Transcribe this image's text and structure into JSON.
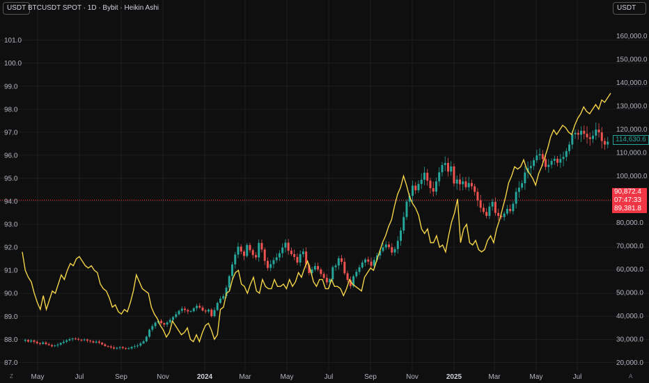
{
  "header": {
    "left_currency": "USDT",
    "symbol_title": "BTCUSDT SPOT · 1D · Bybit · Heikin Ashi",
    "right_currency": "USDT"
  },
  "corner_labels": {
    "bottom_left": "Z",
    "bottom_right": "A"
  },
  "colors": {
    "background": "#0f0f10",
    "up_candle": "#26a69a",
    "down_candle": "#ef5350",
    "line_series": "#f5d547",
    "price_tag_current": "#26a69a",
    "price_tag_red": "#f23645"
  },
  "price_tags": {
    "current": "114,630.6",
    "high": "90,872.4",
    "countdown": "07:47:33",
    "low": "89,381.8"
  },
  "chart_data": {
    "type": "candlestick",
    "title": "BTCUSDT SPOT · 1D · Bybit · Heikin Ashi",
    "x_ticks": [
      "May",
      "Jul",
      "Sep",
      "Nov",
      "2024",
      "Mar",
      "May",
      "Jul",
      "Sep",
      "Nov",
      "2025",
      "Mar",
      "May",
      "Jul"
    ],
    "x_ticks_bold": [
      "2024",
      "2025"
    ],
    "left_axis": {
      "ticks": [
        "87.0",
        "88.0",
        "89.0",
        "90.0",
        "91.0",
        "92.0",
        "93.0",
        "94.0",
        "95.0",
        "96.0",
        "97.0",
        "98.0",
        "99.0",
        "100.0",
        "101.0"
      ],
      "range": [
        86.8,
        102.2
      ]
    },
    "right_axis": {
      "ticks": [
        "20,000.0",
        "30,000.0",
        "40,000.0",
        "50,000.0",
        "60,000.0",
        "70,000.0",
        "80,000.0",
        "90,000.0",
        "100,000.0",
        "110,000.0",
        "120,000.0",
        "130,000.0",
        "140,000.0",
        "150,000.0",
        "160,000.0"
      ],
      "range": [
        18000,
        170000
      ]
    },
    "horizontal_line": {
      "value_left": 94.05
    },
    "series": [
      {
        "kind": "candles",
        "axis": "right",
        "closes": [
          29200,
          29600,
          28900,
          29400,
          28800,
          28200,
          27900,
          28500,
          27800,
          27400,
          26900,
          27200,
          27600,
          28300,
          28800,
          29400,
          29900,
          30200,
          30000,
          29700,
          29500,
          29800,
          29300,
          29000,
          28500,
          28900,
          28400,
          27700,
          27000,
          26800,
          26400,
          25900,
          26200,
          26500,
          26100,
          25800,
          26000,
          26600,
          26900,
          27200,
          28100,
          29000,
          31000,
          34000,
          35500,
          37000,
          37800,
          36800,
          36200,
          37100,
          38200,
          39400,
          40600,
          42100,
          43000,
          42400,
          41800,
          41900,
          43200,
          44200,
          43500,
          42200,
          41800,
          42600,
          39800,
          42400,
          45500,
          47300,
          48400,
          52000,
          57000,
          62000,
          66200,
          69600,
          67500,
          65600,
          70300,
          68100,
          66000,
          65000,
          71200,
          68400,
          63500,
          60500,
          62100,
          63800,
          65000,
          66800,
          69200,
          71300,
          67900,
          66400,
          65200,
          62800,
          66400,
          67500,
          61800,
          58300,
          59800,
          61300,
          59800,
          57900,
          56200,
          54300,
          55600,
          60800,
          61500,
          64600,
          63100,
          58200,
          55300,
          52700,
          56900,
          58800,
          60700,
          62800,
          64100,
          63200,
          61400,
          63900,
          65800,
          67800,
          69300,
          70500,
          69400,
          67100,
          68600,
          72100,
          76500,
          82300,
          88900,
          91400,
          95800,
          93800,
          96500,
          98300,
          101300,
          97900,
          94700,
          93200,
          97600,
          101500,
          104600,
          105500,
          101800,
          104000,
          96700,
          98400,
          96400,
          97600,
          95100,
          96900,
          95500,
          93100,
          89500,
          86300,
          84500,
          82800,
          86800,
          88800,
          84100,
          82800,
          82300,
          83800,
          85800,
          84800,
          88000,
          93100,
          94900,
          96800,
          101400,
          103300,
          104200,
          106700,
          108700,
          109300,
          107200,
          103800,
          104700,
          106400,
          107300,
          105600,
          107200,
          108100,
          110600,
          113400,
          117800,
          118400,
          117600,
          119300,
          118000,
          116500,
          115800,
          117200,
          119800,
          118600,
          114900,
          113400,
          114630
        ],
        "x_range": [
          "2023-04-01",
          "2025-08-20"
        ]
      },
      {
        "kind": "line",
        "axis": "left",
        "color": "#f5d547",
        "values": [
          91.8,
          91.0,
          90.7,
          90.5,
          90.0,
          89.6,
          89.3,
          89.9,
          89.3,
          89.7,
          90.1,
          90.0,
          90.4,
          90.8,
          90.6,
          91.0,
          91.3,
          91.2,
          91.5,
          91.6,
          91.4,
          91.2,
          91.1,
          91.2,
          91.0,
          90.9,
          90.4,
          90.2,
          90.1,
          89.8,
          89.4,
          89.5,
          89.2,
          89.1,
          89.3,
          89.2,
          89.6,
          90.1,
          90.8,
          90.5,
          90.2,
          90.1,
          90.0,
          89.4,
          89.1,
          88.9,
          88.6,
          88.4,
          88.1,
          88.3,
          88.8,
          88.6,
          88.4,
          88.2,
          88.3,
          88.5,
          88.0,
          87.9,
          88.2,
          87.9,
          88.3,
          88.6,
          88.7,
          88.4,
          88.0,
          88.2,
          89.3,
          89.4,
          90.0,
          90.1,
          90.6,
          90.9,
          91.0,
          90.4,
          90.3,
          90.0,
          90.4,
          90.7,
          90.1,
          90.0,
          90.6,
          90.3,
          90.2,
          90.2,
          90.6,
          90.3,
          90.3,
          90.4,
          90.2,
          90.6,
          90.3,
          90.5,
          90.9,
          90.7,
          91.1,
          91.4,
          91.0,
          90.5,
          90.3,
          90.6,
          90.6,
          90.2,
          90.2,
          90.6,
          90.3,
          90.3,
          90.2,
          89.9,
          90.2,
          90.6,
          90.4,
          90.3,
          90.2,
          90.1,
          90.7,
          90.9,
          91.1,
          91.0,
          91.4,
          91.8,
          92.2,
          92.5,
          92.9,
          93.2,
          93.8,
          94.3,
          94.6,
          95.1,
          94.7,
          94.2,
          93.9,
          93.7,
          93.4,
          92.8,
          92.6,
          92.8,
          92.2,
          92.2,
          92.5,
          92.0,
          92.1,
          91.8,
          92.5,
          93.1,
          93.5,
          94.1,
          92.2,
          92.8,
          93.0,
          92.2,
          92.1,
          92.3,
          91.9,
          91.8,
          91.9,
          92.3,
          92.5,
          92.2,
          92.8,
          93.2,
          93.7,
          94.2,
          94.8,
          95.1,
          95.5,
          95.4,
          95.5,
          95.8,
          95.4,
          95.2,
          95.0,
          94.7,
          95.2,
          95.5,
          95.9,
          96.3,
          96.8,
          97.1,
          96.9,
          97.1,
          97.3,
          97.2,
          97.0,
          96.9,
          97.3,
          97.6,
          97.8,
          98.1,
          97.9,
          97.8,
          98.0,
          98.2,
          98.0,
          98.4,
          98.3,
          98.5,
          98.7
        ],
        "x_range": [
          "2023-04-01",
          "2025-08-20"
        ]
      }
    ],
    "grid": true
  }
}
